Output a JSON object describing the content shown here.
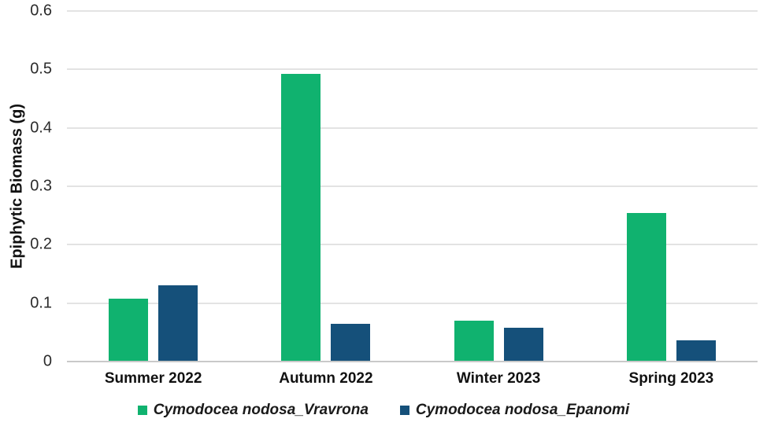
{
  "chart_data": {
    "type": "bar",
    "title": "",
    "xlabel": "",
    "ylabel": "Epiphytic Biomass (g)",
    "categories": [
      "Summer 2022",
      "Autumn 2022",
      "Winter 2023",
      "Spring 2023"
    ],
    "series": [
      {
        "name": "Cymodocea nodosa_Vravrona",
        "color": "#10b26f",
        "values": [
          0.107,
          0.492,
          0.07,
          0.254
        ]
      },
      {
        "name": "Cymodocea nodosa_Epanomi",
        "color": "#15507a",
        "values": [
          0.131,
          0.064,
          0.058,
          0.036
        ]
      }
    ],
    "ylim": [
      0,
      0.6
    ],
    "ytick_step": 0.1,
    "yticks": [
      "0",
      "0.1",
      "0.2",
      "0.3",
      "0.4",
      "0.5",
      "0.6"
    ],
    "grid": true,
    "gridline_color": "#e3e3e3",
    "axis_line_color": "#c9c9c9",
    "legend_position": "bottom"
  }
}
